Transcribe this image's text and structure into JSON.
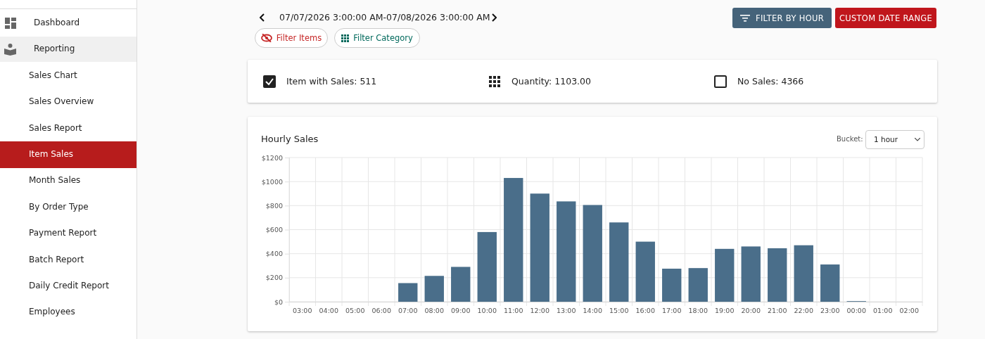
{
  "chart_data": {
    "type": "bar",
    "title": "Hourly Sales",
    "categories": [
      "03:00",
      "04:00",
      "05:00",
      "06:00",
      "07:00",
      "08:00",
      "09:00",
      "10:00",
      "11:00",
      "12:00",
      "13:00",
      "14:00",
      "15:00",
      "16:00",
      "17:00",
      "18:00",
      "19:00",
      "20:00",
      "21:00",
      "22:00",
      "23:00",
      "00:00",
      "01:00",
      "02:00"
    ],
    "values": [
      0,
      0,
      0,
      0,
      155,
      215,
      290,
      580,
      1030,
      900,
      835,
      805,
      660,
      500,
      275,
      280,
      440,
      460,
      445,
      470,
      310,
      5,
      0,
      0
    ],
    "color": "#4a6e8a",
    "ylim": [
      0,
      1200
    ],
    "yticks": [
      {
        "value": 0,
        "label": "$0"
      },
      {
        "value": 200,
        "label": "$200"
      },
      {
        "value": 400,
        "label": "$400"
      },
      {
        "value": 600,
        "label": "$600"
      },
      {
        "value": 800,
        "label": "$800"
      },
      {
        "value": 1000,
        "label": "$1000"
      },
      {
        "value": 1200,
        "label": "$1200"
      }
    ],
    "grid": true,
    "annotations": [
      "07/07/2026 3:00:00 AM-07/08/2026 3:00:00 AM",
      "Filter Items",
      "Filter Category",
      "FILTER BY HOUR",
      "CUSTOM DATE RANGE",
      "Item with Sales:  511",
      "Quantity:  1103.00",
      "No Sales:  4366",
      "Bucket:",
      "1 hour",
      "Dashboard",
      "Reporting",
      "Sales Chart",
      "Sales Overview",
      "Sales Report",
      "Item Sales",
      "Month Sales",
      "By Order Type",
      "Payment Report",
      "Batch Report",
      "Daily Credit Report",
      "Employees"
    ]
  }
}
